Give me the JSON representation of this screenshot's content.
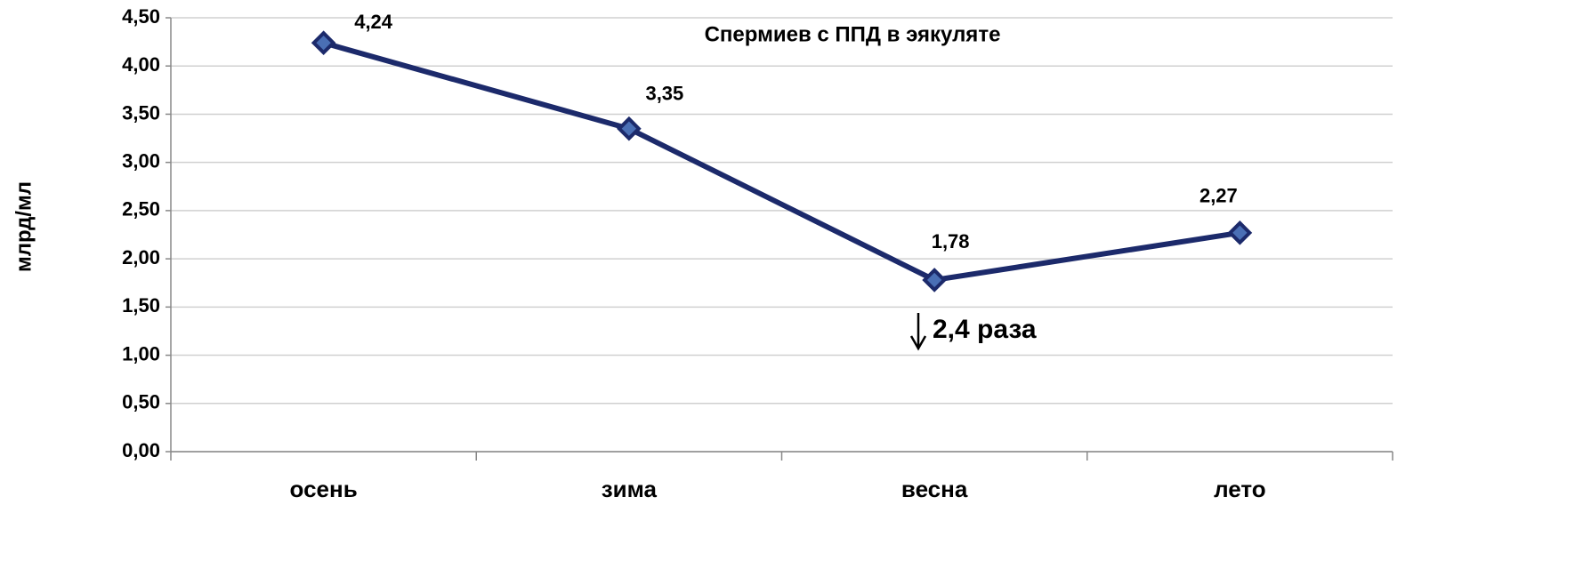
{
  "chart_data": {
    "type": "line",
    "title": "Спермиев с ППД в эякуляте",
    "y_label": "млрд/мл",
    "annotation": "2,4 раза",
    "categories": [
      "осень",
      "зима",
      "весна",
      "лето"
    ],
    "series": [
      {
        "name": "Спермиев с ППД в эякуляте",
        "color": "#1c2a6b",
        "marker_color": "#4a6fb5",
        "values": [
          4.24,
          3.35,
          1.78,
          2.27
        ],
        "value_labels": [
          "4,24",
          "3,35",
          "1,78",
          "2,27"
        ]
      }
    ],
    "ylim": [
      0,
      4.5
    ],
    "yticks": [
      {
        "value": 0,
        "label": "0,00"
      },
      {
        "value": 0.5,
        "label": "0,50"
      },
      {
        "value": 1,
        "label": "1,00"
      },
      {
        "value": 1.5,
        "label": "1,50"
      },
      {
        "value": 2,
        "label": "2,00"
      },
      {
        "value": 2.5,
        "label": "2,50"
      },
      {
        "value": 3,
        "label": "3,00"
      },
      {
        "value": 3.5,
        "label": "3,50"
      },
      {
        "value": 4,
        "label": "4,00"
      },
      {
        "value": 4.5,
        "label": "4,50"
      }
    ],
    "grid": true
  }
}
